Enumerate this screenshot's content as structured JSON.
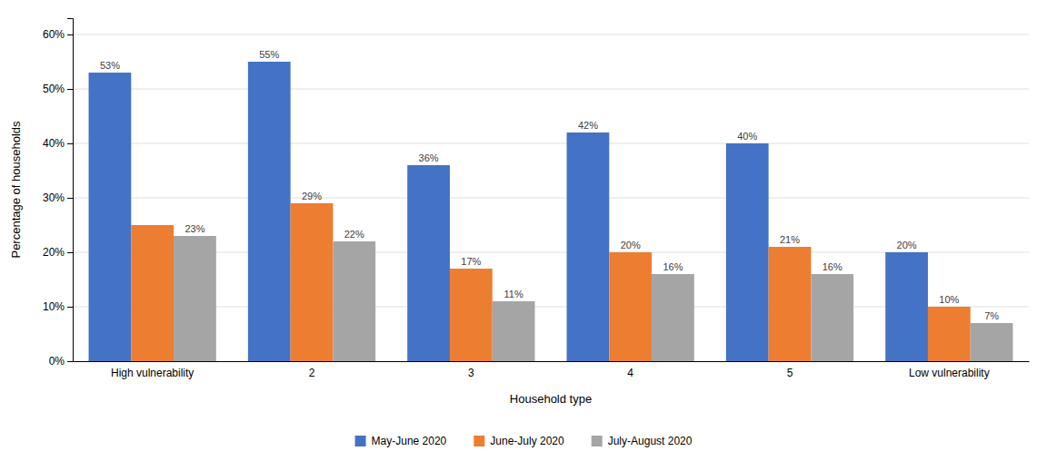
{
  "chart_data": {
    "type": "bar",
    "categories": [
      "High vulnerability",
      "2",
      "3",
      "4",
      "5",
      "Low vulnerability"
    ],
    "series": [
      {
        "name": "May-June 2020",
        "color": "#4472C4",
        "values": [
          53,
          55,
          36,
          42,
          40,
          20
        ],
        "value_labels": [
          "53%",
          "55%",
          "36%",
          "42%",
          "40%",
          "20%"
        ]
      },
      {
        "name": "June-July 2020",
        "color": "#ED7D31",
        "values": [
          25,
          29,
          17,
          20,
          21,
          10
        ],
        "value_labels": [
          null,
          "29%",
          "17%",
          "20%",
          "21%",
          "10%"
        ]
      },
      {
        "name": "July-August 2020",
        "color": "#A5A5A5",
        "values": [
          23,
          22,
          11,
          16,
          16,
          7
        ],
        "value_labels": [
          "23%",
          "22%",
          "11%",
          "16%",
          "16%",
          "7%"
        ]
      }
    ],
    "xlabel": "Household type",
    "ylabel": "Percentage of households",
    "ylim": [
      0,
      63
    ],
    "yticks": [
      {
        "value": 0,
        "label": "0%"
      },
      {
        "value": 10,
        "label": "10%"
      },
      {
        "value": 20,
        "label": "20%"
      },
      {
        "value": 30,
        "label": "30%"
      },
      {
        "value": 40,
        "label": "40%"
      },
      {
        "value": 50,
        "label": "50%"
      },
      {
        "value": 60,
        "label": "60%"
      }
    ],
    "grid": true,
    "legend": "bottom",
    "data_labels": true
  }
}
